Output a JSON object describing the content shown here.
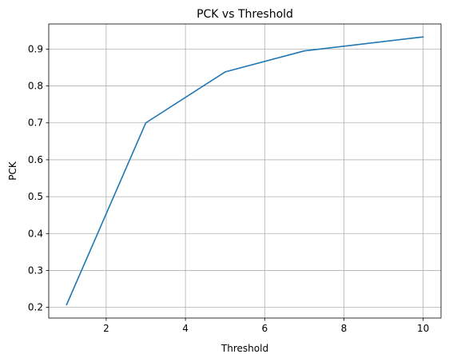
{
  "chart_data": {
    "type": "line",
    "title": "PCK vs Threshold",
    "xlabel": "Threshold",
    "ylabel": "PCK",
    "xlim": [
      0.55,
      10.45
    ],
    "ylim": [
      0.171,
      0.968
    ],
    "xticks": [
      2,
      4,
      6,
      8,
      10
    ],
    "yticks": [
      0.2,
      0.3,
      0.4,
      0.5,
      0.6,
      0.7,
      0.8,
      0.9
    ],
    "xtick_labels": [
      "2",
      "4",
      "6",
      "8",
      "10"
    ],
    "ytick_labels": [
      "0.2",
      "0.3",
      "0.4",
      "0.5",
      "0.6",
      "0.7",
      "0.8",
      "0.9"
    ],
    "grid": true,
    "series": [
      {
        "color": "#1f77b4",
        "x": [
          1,
          3,
          5,
          7,
          10
        ],
        "y": [
          0.207,
          0.7,
          0.838,
          0.895,
          0.933
        ]
      }
    ]
  }
}
